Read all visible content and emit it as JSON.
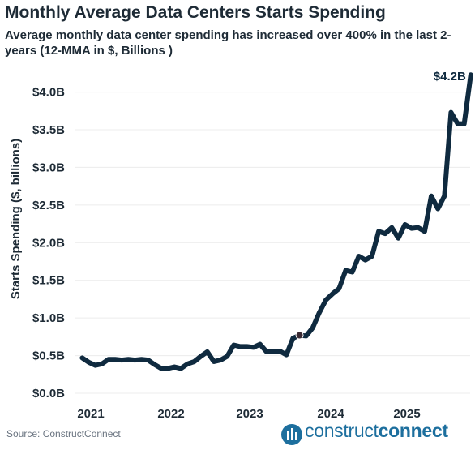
{
  "header": {
    "title": "Monthly Average Data Centers Starts Spending",
    "subtitle": "Average monthly data center spending has increased over 400% in the last 2-years (12-MMA in $, Billions )"
  },
  "footer": {
    "source": "Source: ConstructConnect",
    "brand_light": "construct",
    "brand_bold": "connect"
  },
  "colors": {
    "line": "#0f2a3f",
    "grid": "#ececec",
    "brand": "#1d6f9e"
  },
  "chart_data": {
    "type": "line",
    "title": "Monthly Average Data Centers Starts Spending",
    "ylabel": "Starts Spending ($, billions)",
    "xlabel": "",
    "ylim": [
      0,
      4.2
    ],
    "yticks": [
      0,
      0.5,
      1.0,
      1.5,
      2.0,
      2.5,
      3.0,
      3.5,
      4.0
    ],
    "ytick_labels": [
      "$0.0B",
      "$0.5B",
      "$1.0B",
      "$1.5B",
      "$2.0B",
      "$2.5B",
      "$3.0B",
      "$3.5B",
      "$4.0B"
    ],
    "xticks": [
      2021,
      2022,
      2023,
      2024,
      2025
    ],
    "xtick_labels": [
      "2021",
      "2022",
      "2023",
      "2024",
      "2025"
    ],
    "end_label": "$4.2B",
    "marker_index": 33,
    "series": [
      {
        "values": [
          0.47,
          0.41,
          0.37,
          0.39,
          0.45,
          0.45,
          0.44,
          0.45,
          0.44,
          0.45,
          0.44,
          0.38,
          0.33,
          0.33,
          0.35,
          0.33,
          0.39,
          0.42,
          0.49,
          0.55,
          0.42,
          0.44,
          0.49,
          0.64,
          0.62,
          0.62,
          0.61,
          0.65,
          0.55,
          0.55,
          0.56,
          0.51,
          0.73,
          0.77,
          0.76,
          0.87,
          1.07,
          1.24,
          1.32,
          1.39,
          1.63,
          1.61,
          1.82,
          1.77,
          1.82,
          2.15,
          2.12,
          2.2,
          2.06,
          2.24,
          2.19,
          2.2,
          2.15,
          2.62,
          2.45,
          2.62,
          3.73,
          3.58,
          3.58,
          4.23
        ]
      }
    ]
  }
}
